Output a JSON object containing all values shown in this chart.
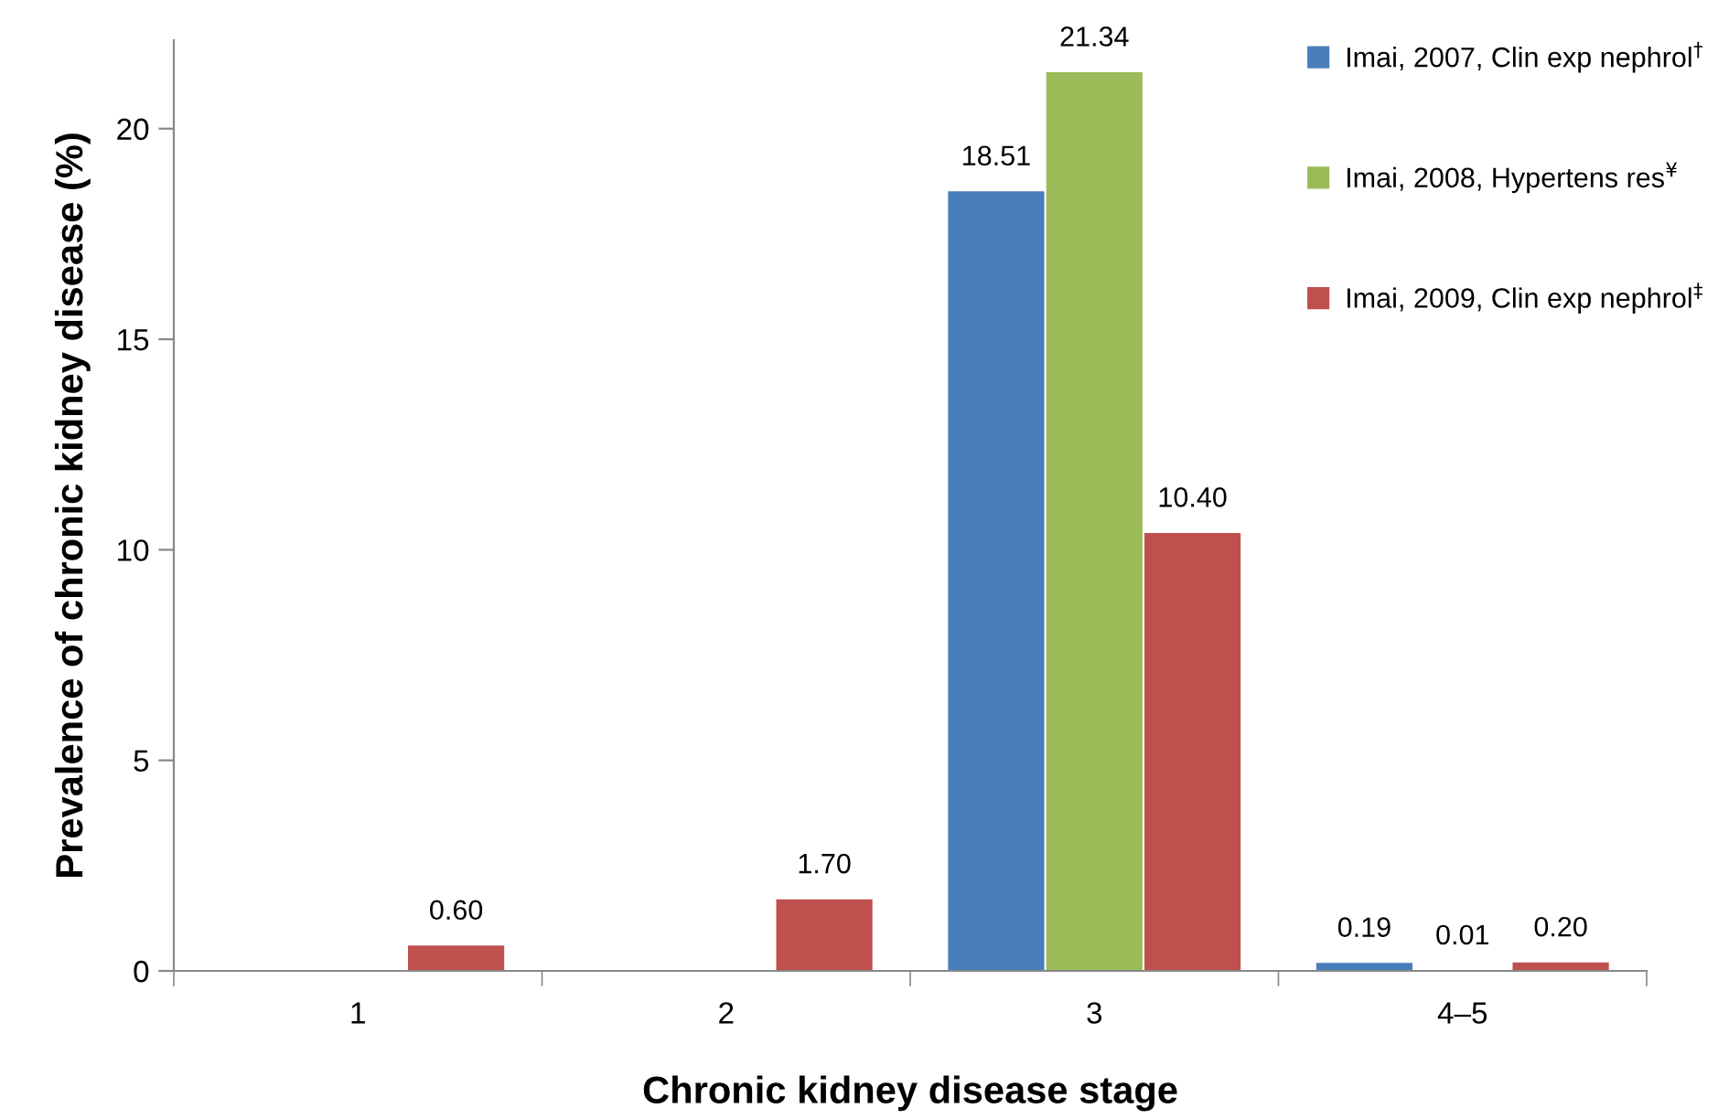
{
  "chart_data": {
    "type": "bar",
    "xlabel": "Chronic kidney disease stage",
    "ylabel": "Prevalence of chronic kidney disease (%)",
    "categories": [
      "1",
      "2",
      "3",
      "4–5"
    ],
    "series": [
      {
        "name": "Imai, 2007, Clin exp nephrol$^{†}$",
        "color": "#4a7ebb",
        "values": [
          null,
          null,
          18.51,
          0.19
        ],
        "value_labels": [
          null,
          null,
          "18.51",
          "0.19"
        ]
      },
      {
        "name": "Imai, 2008, Hypertens res$^{¥}$",
        "color": "#9bbb59",
        "values": [
          null,
          null,
          21.34,
          0.01
        ],
        "value_labels": [
          null,
          null,
          "21.34",
          "0.01"
        ]
      },
      {
        "name": "Imai, 2009, Clin exp nephrol$^{‡}$",
        "color": "#c0504d",
        "values": [
          0.6,
          1.7,
          10.4,
          0.2
        ],
        "value_labels": [
          "0.60",
          "1.70",
          "10.40",
          "0.20"
        ]
      }
    ],
    "ylim": [
      0,
      22.1
    ],
    "yticks": [
      0,
      5,
      10,
      15,
      20
    ],
    "grid": false,
    "legend": "top right"
  }
}
